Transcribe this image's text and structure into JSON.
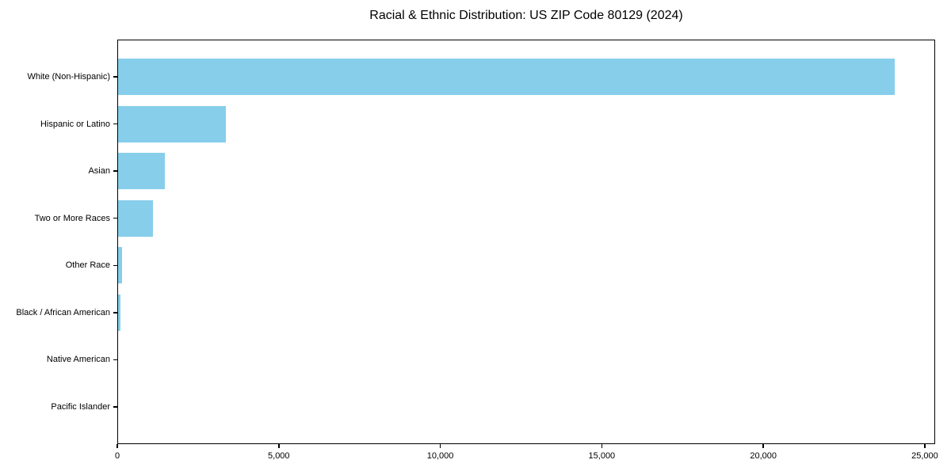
{
  "chart_data": {
    "type": "bar",
    "orientation": "horizontal",
    "title": "Racial & Ethnic Distribution: US ZIP Code 80129 (2024)",
    "categories": [
      "White (Non-Hispanic)",
      "Hispanic or Latino",
      "Asian",
      "Two or More Races",
      "Other Race",
      "Black / African American",
      "Native American",
      "Pacific Islander"
    ],
    "values": [
      24070,
      3360,
      1470,
      1100,
      140,
      100,
      0,
      0
    ],
    "xlabel": "",
    "ylabel": "",
    "xlim": [
      0,
      25320
    ],
    "x_ticks": [
      0,
      5000,
      10000,
      15000,
      20000,
      25000
    ],
    "x_tick_labels": [
      "0",
      "5,000",
      "10,000",
      "15,000",
      "20,000",
      "25,000"
    ],
    "grid": false,
    "value_labels_shown": false,
    "colors": {
      "bar": "#87CEEB",
      "text": "#000000",
      "spine": "#000000",
      "background": "#ffffff"
    }
  }
}
